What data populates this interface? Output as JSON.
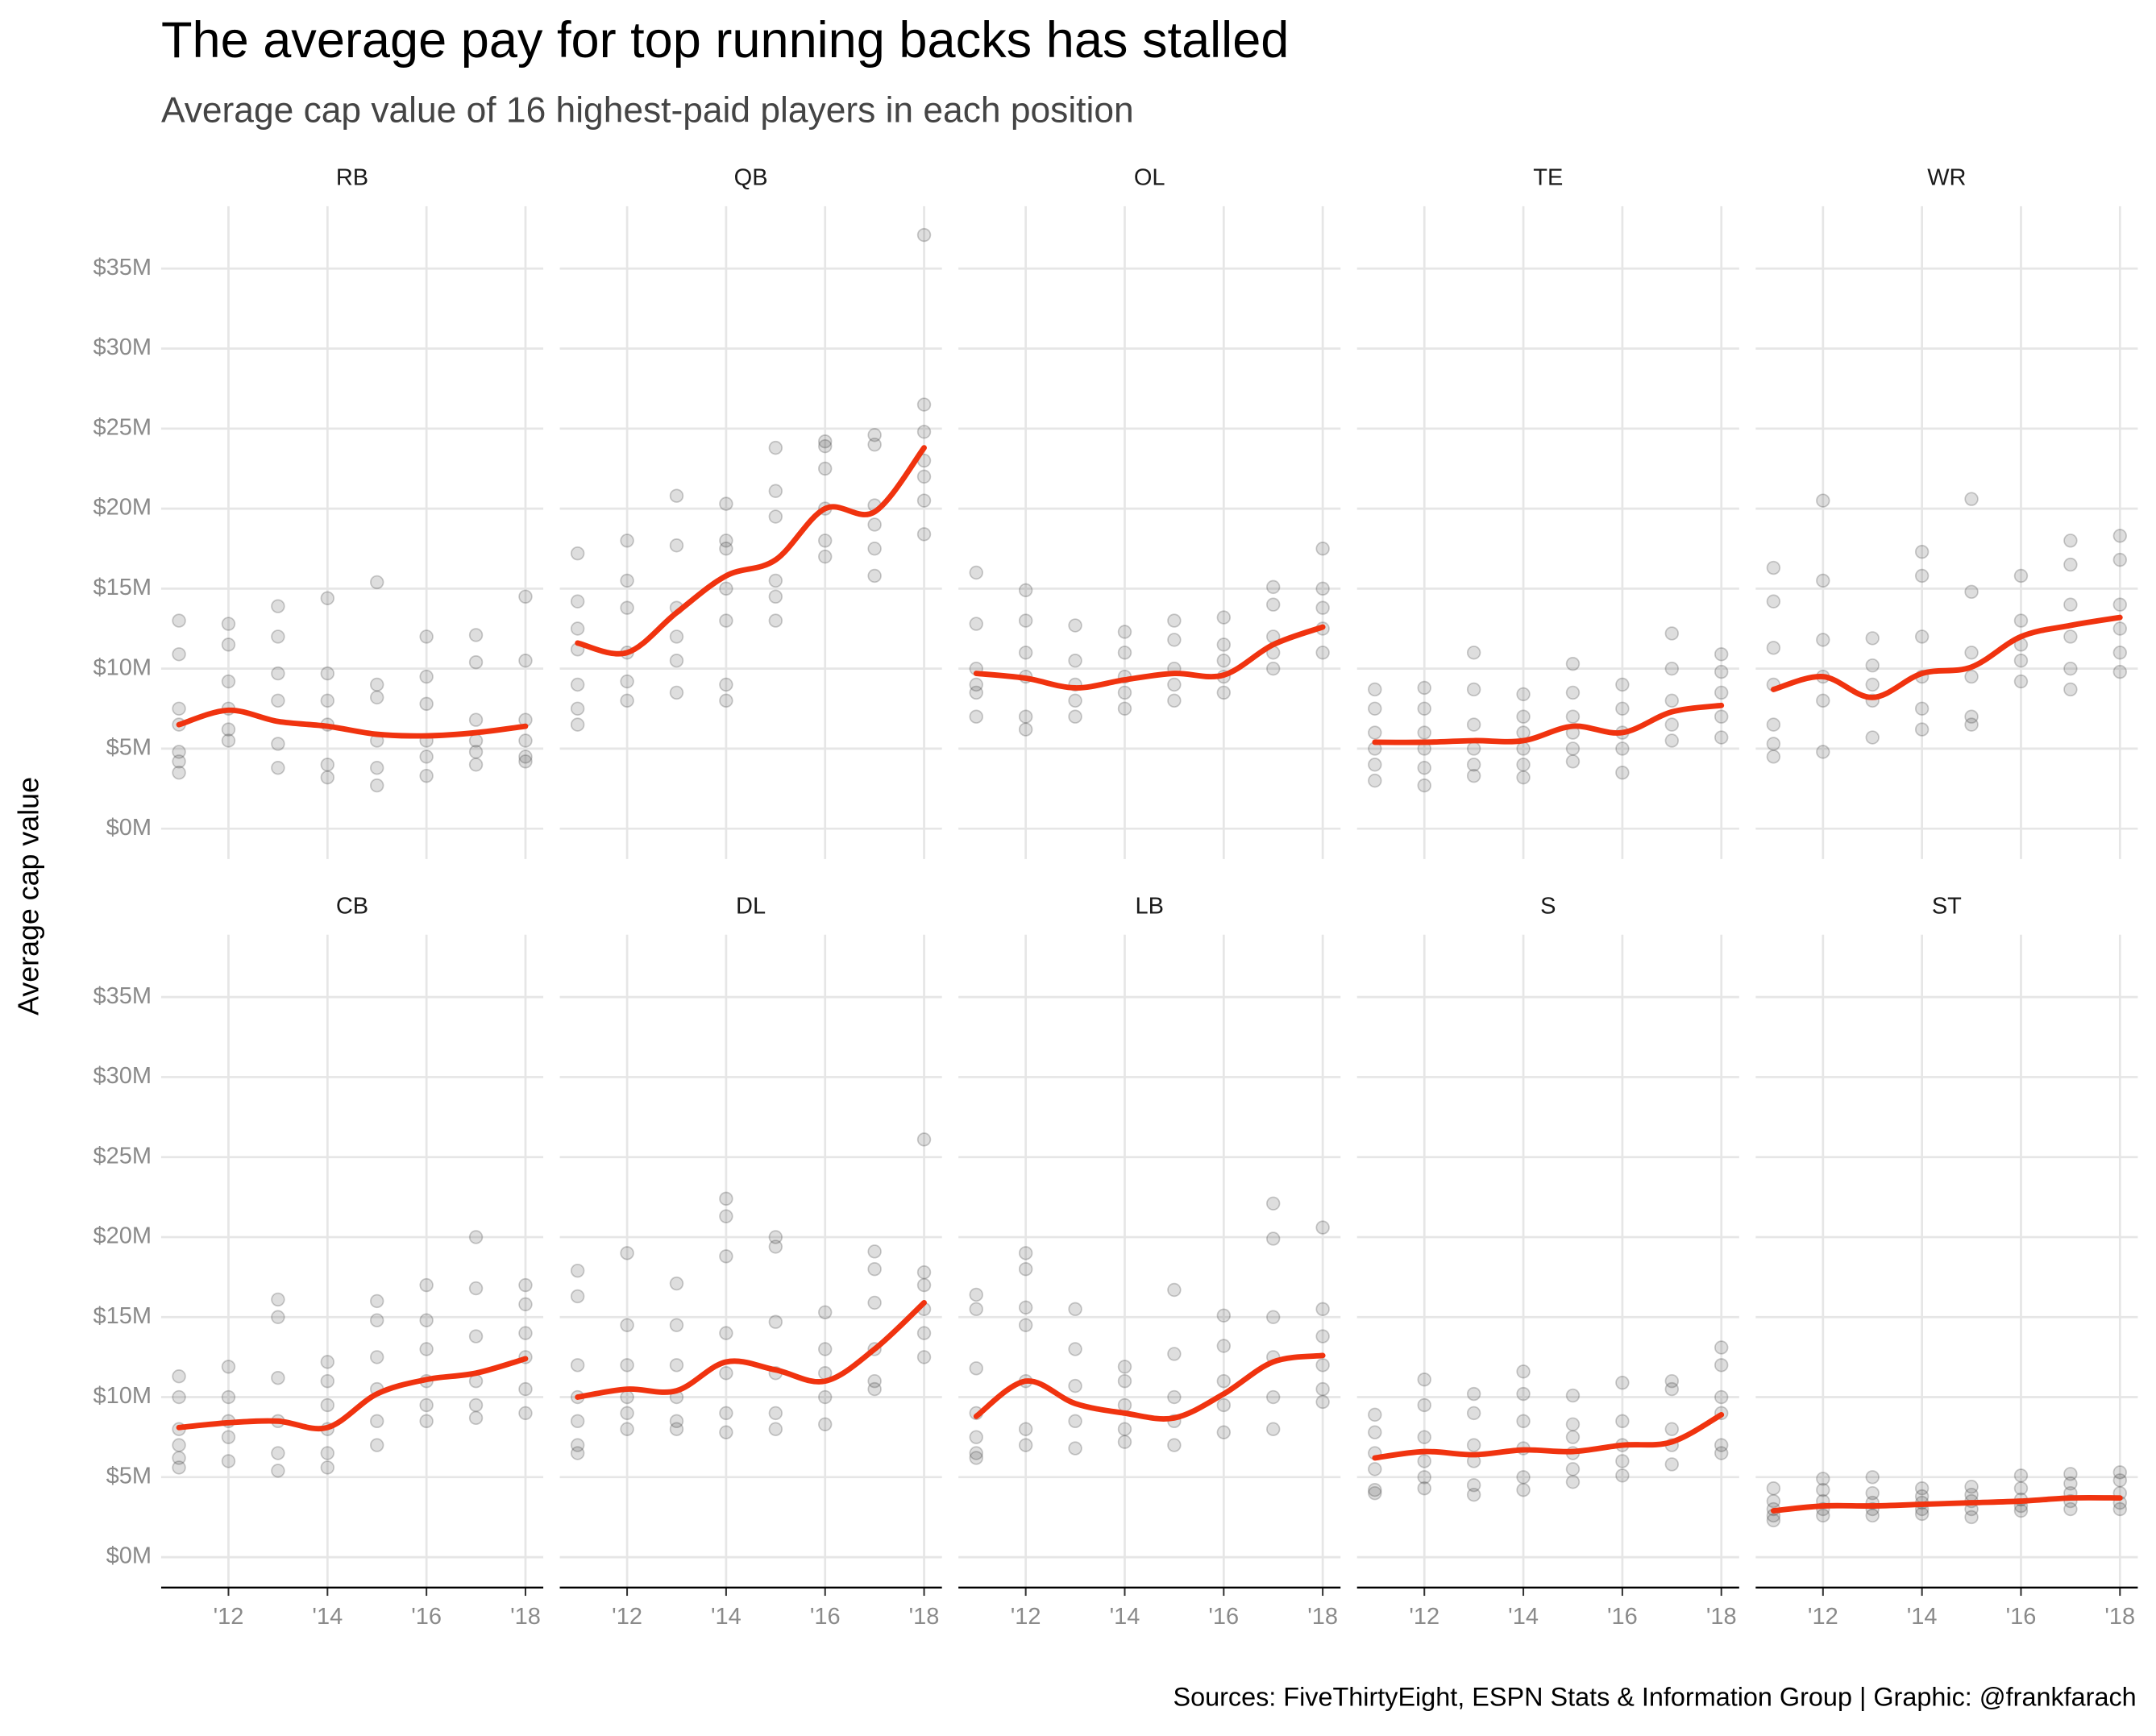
{
  "title": "The average pay for top running backs has stalled",
  "subtitle": "Average cap value of 16 highest-paid players in each position",
  "ylabel": "Average cap value",
  "source": "Sources: FiveThirtyEight, ESPN Stats & Information Group  |  Graphic: @frankfarach",
  "axes": {
    "xlim": [
      2010.64,
      2018.36
    ],
    "xticks": [
      {
        "value": 2012,
        "label": "'12"
      },
      {
        "value": 2014,
        "label": "'14"
      },
      {
        "value": 2016,
        "label": "'16"
      },
      {
        "value": 2018,
        "label": "'18"
      }
    ],
    "ylim": [
      -1.9,
      38.9
    ],
    "yticks": [
      {
        "value": 0,
        "label": "$0M"
      },
      {
        "value": 5,
        "label": "$5M"
      },
      {
        "value": 10,
        "label": "$10M"
      },
      {
        "value": 15,
        "label": "$15M"
      },
      {
        "value": 20,
        "label": "$20M"
      },
      {
        "value": 25,
        "label": "$25M"
      },
      {
        "value": 30,
        "label": "$30M"
      },
      {
        "value": 35,
        "label": "$35M"
      }
    ],
    "grid": true,
    "point_color": "#333333",
    "trend_color": "#f0330f"
  },
  "chart_data": [
    {
      "type": "scatter",
      "title": "RB",
      "x": [
        2011,
        2012,
        2013,
        2014,
        2015,
        2016,
        2017,
        2018
      ],
      "points": [
        [
          13.0,
          10.9,
          7.5,
          6.5,
          4.8,
          4.2,
          3.5
        ],
        [
          12.8,
          11.5,
          9.2,
          7.5,
          6.2,
          5.5
        ],
        [
          13.9,
          12.0,
          9.7,
          8.0,
          5.3,
          3.8
        ],
        [
          14.4,
          9.7,
          8.0,
          6.5,
          4.0,
          3.2
        ],
        [
          15.4,
          9.0,
          8.2,
          5.5,
          3.8,
          2.7
        ],
        [
          12.0,
          9.5,
          7.8,
          5.5,
          4.5,
          3.3
        ],
        [
          12.1,
          10.4,
          6.8,
          5.5,
          4.8,
          4.0
        ],
        [
          14.5,
          10.5,
          6.8,
          5.5,
          4.5,
          4.2
        ]
      ],
      "trend": [
        6.5,
        7.4,
        6.7,
        6.4,
        5.9,
        5.8,
        6.0,
        6.4
      ]
    },
    {
      "type": "scatter",
      "title": "QB",
      "x": [
        2011,
        2012,
        2013,
        2014,
        2015,
        2016,
        2017,
        2018
      ],
      "points": [
        [
          17.2,
          14.2,
          12.5,
          11.2,
          9.0,
          7.5,
          6.5
        ],
        [
          18.0,
          15.5,
          13.8,
          11.0,
          9.2,
          8.0
        ],
        [
          20.8,
          17.7,
          13.8,
          12.0,
          10.5,
          8.5
        ],
        [
          20.3,
          18.0,
          17.5,
          15.0,
          13.0,
          9.0,
          8.0
        ],
        [
          23.8,
          21.1,
          19.5,
          15.5,
          14.5,
          13.0
        ],
        [
          24.2,
          23.9,
          22.5,
          20.0,
          18.0,
          17.0
        ],
        [
          24.6,
          24.0,
          20.2,
          19.0,
          17.5,
          15.8
        ],
        [
          37.1,
          26.5,
          24.8,
          23.0,
          22.0,
          20.5,
          18.4
        ]
      ],
      "trend": [
        11.6,
        11.0,
        13.5,
        15.8,
        16.8,
        20.0,
        19.8,
        23.8
      ]
    },
    {
      "type": "scatter",
      "title": "OL",
      "x": [
        2011,
        2012,
        2013,
        2014,
        2015,
        2016,
        2017,
        2018
      ],
      "points": [
        [
          16.0,
          12.8,
          10.0,
          9.0,
          8.5,
          7.0
        ],
        [
          14.9,
          13.0,
          11.0,
          9.5,
          7.0,
          6.2
        ],
        [
          12.7,
          10.5,
          9.0,
          8.0,
          7.0
        ],
        [
          12.3,
          11.0,
          9.5,
          8.5,
          7.5
        ],
        [
          13.0,
          11.8,
          10.0,
          9.0,
          8.0
        ],
        [
          13.2,
          11.5,
          10.5,
          9.5,
          8.5
        ],
        [
          15.1,
          14.0,
          12.0,
          11.0,
          10.0
        ],
        [
          17.5,
          15.0,
          13.8,
          12.5,
          11.0
        ]
      ],
      "trend": [
        9.7,
        9.4,
        8.8,
        9.3,
        9.7,
        9.6,
        11.5,
        12.6
      ]
    },
    {
      "type": "scatter",
      "title": "TE",
      "x": [
        2011,
        2012,
        2013,
        2014,
        2015,
        2016,
        2017,
        2018
      ],
      "points": [
        [
          8.7,
          7.5,
          6.0,
          5.0,
          4.0,
          3.0
        ],
        [
          8.8,
          7.5,
          6.0,
          5.0,
          3.8,
          2.7
        ],
        [
          11.0,
          8.7,
          6.5,
          5.0,
          4.0,
          3.3
        ],
        [
          8.4,
          7.0,
          6.0,
          5.0,
          4.0,
          3.2
        ],
        [
          10.3,
          8.5,
          7.0,
          6.0,
          5.0,
          4.2
        ],
        [
          9.0,
          7.5,
          6.0,
          5.0,
          3.5
        ],
        [
          12.2,
          10.0,
          8.0,
          6.5,
          5.5
        ],
        [
          10.9,
          9.8,
          8.5,
          7.0,
          5.7
        ]
      ],
      "trend": [
        5.4,
        5.4,
        5.5,
        5.5,
        6.4,
        6.0,
        7.3,
        7.7
      ]
    },
    {
      "type": "scatter",
      "title": "WR",
      "x": [
        2011,
        2012,
        2013,
        2014,
        2015,
        2016,
        2017,
        2018
      ],
      "points": [
        [
          16.3,
          14.2,
          11.3,
          9.0,
          6.5,
          5.3,
          4.5
        ],
        [
          20.5,
          15.5,
          11.8,
          9.5,
          8.0,
          4.8
        ],
        [
          11.9,
          10.2,
          9.0,
          8.0,
          5.7
        ],
        [
          17.3,
          15.8,
          12.0,
          9.5,
          7.5,
          6.2
        ],
        [
          20.6,
          14.8,
          11.0,
          9.5,
          7.0,
          6.5
        ],
        [
          15.8,
          13.0,
          11.5,
          10.5,
          9.2
        ],
        [
          18.0,
          16.5,
          14.0,
          12.0,
          10.0,
          8.7
        ],
        [
          18.3,
          16.8,
          14.0,
          12.5,
          11.0,
          9.8
        ]
      ],
      "trend": [
        8.7,
        9.5,
        8.2,
        9.7,
        10.1,
        12.0,
        12.7,
        13.2
      ]
    },
    {
      "type": "scatter",
      "title": "CB",
      "x": [
        2011,
        2012,
        2013,
        2014,
        2015,
        2016,
        2017,
        2018
      ],
      "points": [
        [
          11.3,
          10.0,
          8.0,
          7.0,
          6.2,
          5.6
        ],
        [
          11.9,
          10.0,
          8.5,
          7.5,
          6.0
        ],
        [
          16.1,
          15.0,
          11.2,
          8.5,
          6.5,
          5.4
        ],
        [
          12.2,
          11.0,
          9.5,
          8.0,
          6.5,
          5.6
        ],
        [
          16.0,
          14.8,
          12.5,
          10.5,
          8.5,
          7.0
        ],
        [
          17.0,
          14.8,
          13.0,
          11.0,
          9.5,
          8.5
        ],
        [
          20.0,
          16.8,
          13.8,
          11.0,
          9.5,
          8.7
        ],
        [
          17.0,
          15.8,
          14.0,
          12.5,
          10.5,
          9.0
        ]
      ],
      "trend": [
        8.1,
        8.4,
        8.5,
        8.1,
        10.2,
        11.1,
        11.5,
        12.4
      ]
    },
    {
      "type": "scatter",
      "title": "DL",
      "x": [
        2011,
        2012,
        2013,
        2014,
        2015,
        2016,
        2017,
        2018
      ],
      "points": [
        [
          17.9,
          16.3,
          12.0,
          10.0,
          8.5,
          7.0,
          6.5
        ],
        [
          19.0,
          14.5,
          12.0,
          10.0,
          9.0,
          8.0
        ],
        [
          17.1,
          14.5,
          12.0,
          10.0,
          8.5,
          8.0
        ],
        [
          22.4,
          21.3,
          18.8,
          14.0,
          11.5,
          9.0,
          7.8
        ],
        [
          20.0,
          19.4,
          14.7,
          11.5,
          9.0,
          8.0
        ],
        [
          15.3,
          13.0,
          11.5,
          10.0,
          8.3
        ],
        [
          19.1,
          18.0,
          15.9,
          13.0,
          11.0,
          10.5
        ],
        [
          26.1,
          17.8,
          17.0,
          15.5,
          14.0,
          12.5
        ]
      ],
      "trend": [
        10.0,
        10.5,
        10.4,
        12.2,
        11.7,
        11.0,
        13.0,
        15.9
      ]
    },
    {
      "type": "scatter",
      "title": "LB",
      "x": [
        2011,
        2012,
        2013,
        2014,
        2015,
        2016,
        2017,
        2018
      ],
      "points": [
        [
          16.4,
          15.5,
          11.8,
          9.0,
          7.5,
          6.5,
          6.2
        ],
        [
          19.0,
          18.0,
          15.6,
          14.5,
          11.0,
          8.0,
          7.0
        ],
        [
          15.5,
          13.0,
          10.7,
          8.5,
          6.8
        ],
        [
          11.9,
          11.0,
          9.5,
          8.0,
          7.2
        ],
        [
          16.7,
          12.7,
          10.0,
          8.5,
          7.0
        ],
        [
          15.1,
          13.2,
          11.0,
          9.5,
          7.8
        ],
        [
          22.1,
          19.9,
          15.0,
          12.5,
          10.0,
          8.0
        ],
        [
          20.6,
          15.5,
          13.8,
          12.0,
          10.5,
          9.7
        ]
      ],
      "trend": [
        8.8,
        11.0,
        9.6,
        9.0,
        8.7,
        10.2,
        12.2,
        12.6
      ]
    },
    {
      "type": "scatter",
      "title": "S",
      "x": [
        2011,
        2012,
        2013,
        2014,
        2015,
        2016,
        2017,
        2018
      ],
      "points": [
        [
          8.9,
          7.8,
          6.5,
          5.5,
          4.2,
          4.0
        ],
        [
          11.1,
          9.5,
          7.5,
          6.0,
          5.0,
          4.3
        ],
        [
          10.2,
          9.0,
          7.0,
          6.0,
          4.5,
          3.9
        ],
        [
          11.6,
          10.2,
          8.5,
          6.8,
          5.0,
          4.2
        ],
        [
          10.1,
          8.3,
          7.5,
          6.5,
          5.5,
          4.7
        ],
        [
          10.9,
          8.5,
          7.0,
          6.0,
          5.1
        ],
        [
          11.0,
          10.5,
          8.0,
          7.0,
          5.8
        ],
        [
          13.1,
          12.0,
          10.0,
          9.0,
          7.0,
          6.5
        ]
      ],
      "trend": [
        6.2,
        6.6,
        6.4,
        6.7,
        6.6,
        7.0,
        7.2,
        8.9
      ]
    },
    {
      "type": "scatter",
      "title": "ST",
      "x": [
        2011,
        2012,
        2013,
        2014,
        2015,
        2016,
        2017,
        2018
      ],
      "points": [
        [
          4.3,
          3.5,
          3.0,
          2.6,
          2.3
        ],
        [
          4.9,
          4.2,
          3.5,
          3.0,
          2.6
        ],
        [
          5.0,
          4.0,
          3.4,
          3.0,
          2.6
        ],
        [
          4.3,
          3.8,
          3.4,
          3.0,
          2.7
        ],
        [
          4.4,
          3.9,
          3.5,
          3.0,
          2.5
        ],
        [
          5.1,
          4.3,
          3.6,
          3.2,
          2.9
        ],
        [
          5.2,
          4.6,
          4.0,
          3.5,
          3.0
        ],
        [
          5.3,
          4.8,
          4.0,
          3.4,
          3.0
        ]
      ],
      "trend": [
        2.9,
        3.2,
        3.2,
        3.3,
        3.4,
        3.5,
        3.7,
        3.7
      ]
    }
  ]
}
